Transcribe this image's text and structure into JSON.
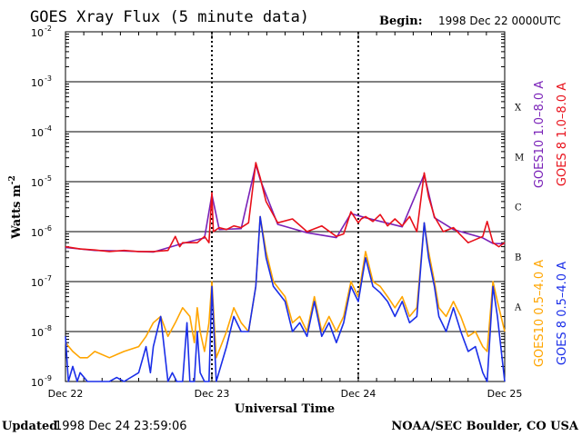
{
  "title": "GOES Xray Flux (5 minute data)",
  "begin_label": "Begin:",
  "begin_value": "1998 Dec 22 0000UTC",
  "footer_left_label": "Updated",
  "footer_left_value": "1998 Dec 24 23:59:06",
  "footer_right": "NOAA/SEC Boulder, CO USA",
  "colors": {
    "goes8_long": "#e8101a",
    "goes10_long": "#7a22b8",
    "goes10_short": "#ffa500",
    "goes8_short": "#1a2ee8",
    "grid": "#000000"
  },
  "chart_data": {
    "type": "line",
    "title": "GOES Xray Flux (5 minute data)",
    "xlabel": "Universal Time",
    "ylabel": "Watts m",
    "ylabel_exp": "-2",
    "y_scale": "log",
    "ylim": [
      1e-09,
      0.01
    ],
    "y_ticks": [
      {
        "base": "10",
        "exp": "-9",
        "value": 1e-09
      },
      {
        "base": "10",
        "exp": "-8",
        "value": 1e-08
      },
      {
        "base": "10",
        "exp": "-7",
        "value": 1e-07
      },
      {
        "base": "10",
        "exp": "-6",
        "value": 1e-06
      },
      {
        "base": "10",
        "exp": "-5",
        "value": 1e-05
      },
      {
        "base": "10",
        "exp": "-4",
        "value": 0.0001
      },
      {
        "base": "10",
        "exp": "-3",
        "value": 0.001
      },
      {
        "base": "10",
        "exp": "-2",
        "value": 0.01
      }
    ],
    "x_ticks": [
      {
        "label": "Dec 22",
        "day": 0
      },
      {
        "label": "Dec 23",
        "day": 1
      },
      {
        "label": "Dec 24",
        "day": 2
      },
      {
        "label": "Dec 25",
        "day": 3
      }
    ],
    "xlim_days": [
      0,
      3
    ],
    "flare_classes": [
      {
        "label": "A",
        "value": 1e-08
      },
      {
        "label": "B",
        "value": 1e-07
      },
      {
        "label": "C",
        "value": 1e-06
      },
      {
        "label": "M",
        "value": 1e-05
      },
      {
        "label": "X",
        "value": 0.0001
      }
    ],
    "series": [
      {
        "name": "GOES 8 1.0–8.0 A",
        "color": "#e8101a",
        "day": [
          0.0,
          0.1,
          0.2,
          0.3,
          0.4,
          0.5,
          0.6,
          0.7,
          0.75,
          0.78,
          0.8,
          0.85,
          0.9,
          0.95,
          0.98,
          1.0,
          1.01,
          1.05,
          1.1,
          1.15,
          1.2,
          1.25,
          1.3,
          1.33,
          1.37,
          1.45,
          1.55,
          1.65,
          1.75,
          1.85,
          1.9,
          1.95,
          2.0,
          2.02,
          2.05,
          2.1,
          2.15,
          2.2,
          2.25,
          2.3,
          2.35,
          2.4,
          2.45,
          2.48,
          2.52,
          2.58,
          2.65,
          2.75,
          2.85,
          2.88,
          2.92,
          2.96,
          3.0
        ],
        "values": [
          5e-07,
          4.5e-07,
          4.3e-07,
          4e-07,
          4.2e-07,
          4e-07,
          4e-07,
          4.2e-07,
          8e-07,
          5e-07,
          6e-07,
          6e-07,
          6e-07,
          8e-07,
          6e-07,
          6e-06,
          1e-06,
          1.2e-06,
          1.1e-06,
          1.3e-06,
          1.2e-06,
          1.5e-06,
          2.4e-05,
          1.2e-05,
          4e-06,
          1.5e-06,
          1.8e-06,
          1e-06,
          1.3e-06,
          8e-07,
          9e-07,
          2.5e-06,
          1.5e-06,
          1.8e-06,
          2e-06,
          1.6e-06,
          2.2e-06,
          1.3e-06,
          1.8e-06,
          1.3e-06,
          2e-06,
          1e-06,
          1.5e-05,
          5e-06,
          2e-06,
          1e-06,
          1.2e-06,
          6e-07,
          8e-07,
          1.6e-06,
          6e-07,
          5e-07,
          6e-07
        ]
      },
      {
        "name": "GOES10 1.0–8.0 A",
        "color": "#7a22b8",
        "day": [
          0.0,
          0.2,
          0.4,
          0.6,
          0.8,
          0.95,
          1.0,
          1.05,
          1.2,
          1.3,
          1.33,
          1.45,
          1.65,
          1.85,
          1.95,
          2.05,
          2.3,
          2.45,
          2.52,
          2.65,
          2.85,
          2.92,
          3.0
        ],
        "values": [
          4.8e-07,
          4.2e-07,
          4.1e-07,
          3.9e-07,
          5.8e-07,
          7.5e-07,
          5.5e-06,
          1.1e-06,
          1.15e-06,
          2.2e-05,
          1.1e-05,
          1.4e-06,
          9.5e-07,
          7.6e-07,
          2.3e-06,
          1.9e-06,
          1.25e-06,
          1.4e-05,
          1.9e-06,
          1.1e-06,
          7.5e-07,
          5.8e-07,
          5.7e-07
        ]
      },
      {
        "name": "GOES10 0.5–4.0 A",
        "color": "#ffa500",
        "day": [
          0.0,
          0.05,
          0.1,
          0.15,
          0.2,
          0.3,
          0.4,
          0.5,
          0.55,
          0.6,
          0.65,
          0.7,
          0.75,
          0.8,
          0.85,
          0.88,
          0.9,
          0.92,
          0.95,
          0.98,
          1.0,
          1.03,
          1.06,
          1.1,
          1.15,
          1.2,
          1.25,
          1.3,
          1.33,
          1.37,
          1.42,
          1.5,
          1.55,
          1.6,
          1.65,
          1.7,
          1.75,
          1.8,
          1.85,
          1.9,
          1.95,
          2.0,
          2.05,
          2.1,
          2.15,
          2.2,
          2.25,
          2.3,
          2.35,
          2.4,
          2.45,
          2.48,
          2.52,
          2.55,
          2.6,
          2.65,
          2.7,
          2.75,
          2.8,
          2.85,
          2.88,
          2.92,
          2.95,
          3.0
        ],
        "values": [
          6e-09,
          4e-09,
          3e-09,
          3e-09,
          4e-09,
          3e-09,
          4e-09,
          5e-09,
          8e-09,
          1.5e-08,
          2e-08,
          8e-09,
          1.5e-08,
          3e-08,
          2e-08,
          6e-09,
          3e-08,
          1e-08,
          4e-09,
          1.5e-08,
          1e-07,
          3e-09,
          5e-09,
          1e-08,
          3e-08,
          1.5e-08,
          1e-08,
          8e-08,
          2e-06,
          4e-07,
          1e-07,
          5e-08,
          1.5e-08,
          2e-08,
          1e-08,
          5e-08,
          1e-08,
          2e-08,
          1e-08,
          2e-08,
          1e-07,
          5e-08,
          4e-07,
          1e-07,
          8e-08,
          5e-08,
          3e-08,
          5e-08,
          2e-08,
          3e-08,
          1.5e-06,
          4e-07,
          1e-07,
          3e-08,
          2e-08,
          4e-08,
          2e-08,
          8e-09,
          1e-08,
          5e-09,
          4e-09,
          1e-07,
          4e-08,
          1e-08
        ]
      },
      {
        "name": "GOES 8 0.5–4.0 A",
        "color": "#1a2ee8",
        "day": [
          0.0,
          0.02,
          0.05,
          0.08,
          0.1,
          0.15,
          0.2,
          0.3,
          0.35,
          0.4,
          0.5,
          0.55,
          0.58,
          0.6,
          0.65,
          0.7,
          0.73,
          0.76,
          0.8,
          0.83,
          0.85,
          0.88,
          0.9,
          0.92,
          0.95,
          0.98,
          1.0,
          1.03,
          1.06,
          1.1,
          1.15,
          1.2,
          1.25,
          1.3,
          1.33,
          1.37,
          1.42,
          1.5,
          1.55,
          1.6,
          1.65,
          1.7,
          1.75,
          1.8,
          1.85,
          1.9,
          1.95,
          2.0,
          2.05,
          2.1,
          2.15,
          2.2,
          2.25,
          2.3,
          2.35,
          2.4,
          2.45,
          2.48,
          2.52,
          2.55,
          2.6,
          2.65,
          2.7,
          2.75,
          2.8,
          2.85,
          2.88,
          2.92,
          2.95,
          3.0
        ],
        "values": [
          8e-09,
          1e-09,
          2e-09,
          1e-09,
          1.5e-09,
          1e-09,
          1e-09,
          1e-09,
          1.2e-09,
          1e-09,
          1.5e-09,
          5e-09,
          1.5e-09,
          5e-09,
          2e-08,
          1e-09,
          1.5e-09,
          1e-09,
          1e-09,
          1.5e-08,
          1e-09,
          1e-09,
          1e-08,
          1.5e-09,
          1e-09,
          1e-09,
          8e-08,
          1e-09,
          2e-09,
          5e-09,
          2e-08,
          1e-08,
          1e-08,
          8e-08,
          2e-06,
          3e-07,
          8e-08,
          4e-08,
          1e-08,
          1.5e-08,
          8e-09,
          4e-08,
          8e-09,
          1.5e-08,
          6e-09,
          1.5e-08,
          8e-08,
          4e-08,
          3e-07,
          8e-08,
          6e-08,
          4e-08,
          2e-08,
          4e-08,
          1.5e-08,
          2e-08,
          1.5e-06,
          3e-07,
          8e-08,
          2e-08,
          1e-08,
          3e-08,
          1e-08,
          4e-09,
          5e-09,
          1.5e-09,
          1e-09,
          8e-08,
          2e-08,
          1e-09
        ]
      }
    ]
  }
}
